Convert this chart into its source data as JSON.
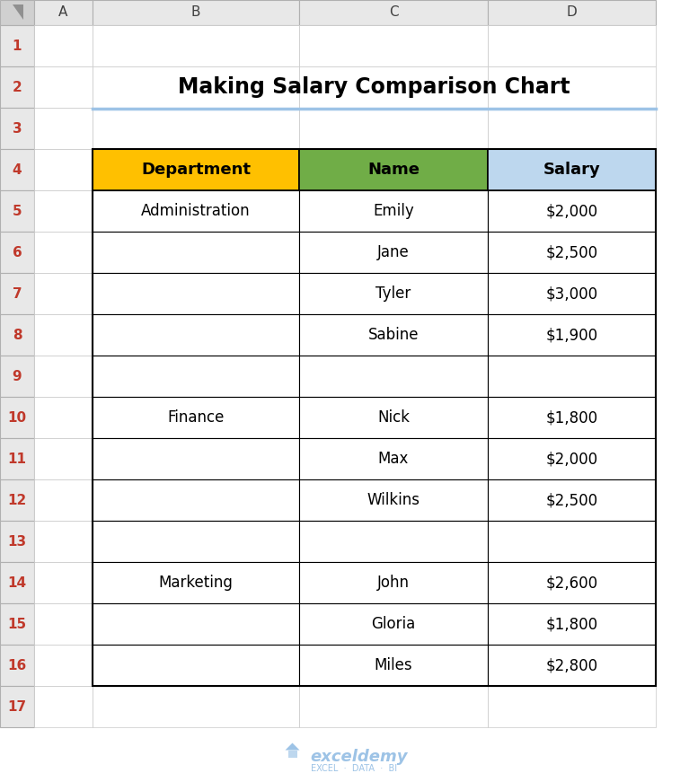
{
  "title": "Making Salary Comparison Chart",
  "title_fontsize": 17,
  "title_fontweight": "bold",
  "bg_color": "#ffffff",
  "col_headers": [
    "Department",
    "Name",
    "Salary"
  ],
  "col_header_bg": [
    "#FFC000",
    "#70AD47",
    "#BDD7EE"
  ],
  "col_header_fontweight": "bold",
  "col_header_fontsize": 13,
  "rows": [
    [
      "Administration",
      "Emily",
      "$2,000"
    ],
    [
      "",
      "Jane",
      "$2,500"
    ],
    [
      "",
      "Tyler",
      "$3,000"
    ],
    [
      "",
      "Sabine",
      "$1,900"
    ],
    [
      "",
      "",
      ""
    ],
    [
      "Finance",
      "Nick",
      "$1,800"
    ],
    [
      "",
      "Max",
      "$2,000"
    ],
    [
      "",
      "Wilkins",
      "$2,500"
    ],
    [
      "",
      "",
      ""
    ],
    [
      "Marketing",
      "John",
      "$2,600"
    ],
    [
      "",
      "Gloria",
      "$1,800"
    ],
    [
      "",
      "Miles",
      "$2,800"
    ]
  ],
  "row_fontsize": 12,
  "excel_row_labels": [
    "1",
    "2",
    "3",
    "4",
    "5",
    "6",
    "7",
    "8",
    "9",
    "10",
    "11",
    "12",
    "13",
    "14",
    "15",
    "16",
    "17"
  ],
  "excel_col_labels": [
    "A",
    "B",
    "C",
    "D"
  ],
  "header_bg": "#e8e8e8",
  "header_border": "#b0b0b0",
  "watermark": "exceldemy",
  "watermark_sub": "EXCEL  ·  DATA  ·  BI",
  "corner_bg": "#d0d0d0",
  "row_num_color": "#c0392b",
  "row_num_fontsize": 11,
  "col_label_fontsize": 11,
  "underline_color": "#9DC3E6",
  "table_border_color": "#000000",
  "cell_border_color": "#000000",
  "outer_border_color": "#000000"
}
